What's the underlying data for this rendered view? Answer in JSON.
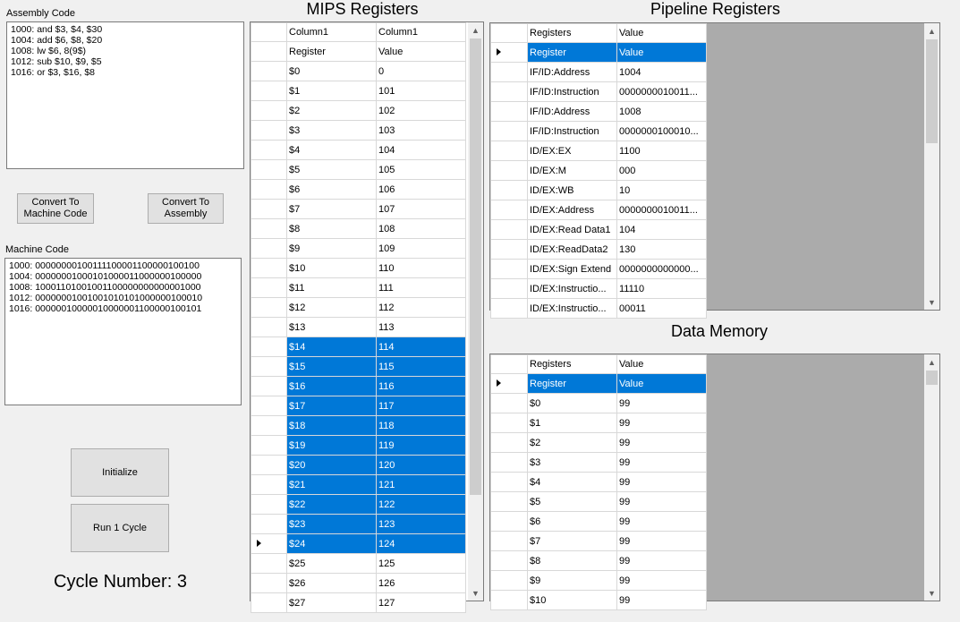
{
  "assembly": {
    "label": "Assembly Code",
    "text": "1000: and $3, $4, $30\n1004: add $6, $8, $20\n1008: lw $6, 8(9$)\n1012: sub $10, $9, $5\n1016: or $3, $16, $8"
  },
  "buttons": {
    "convert_to_machine": "Convert To\nMachine Code",
    "convert_to_assembly": "Convert To\nAssembly",
    "initialize": "Initialize",
    "run_cycle": "Run 1 Cycle"
  },
  "machine": {
    "label": "Machine Code",
    "text": "1000: 00000000100111100001100000100100\n1004: 00000001000101000011000000100000\n1008: 10001101001001100000000000001000\n1012: 00000001001001010101000000100010\n1016: 00000010000010000001100000100101"
  },
  "cycle": {
    "text": "Cycle Number: 3"
  },
  "mips": {
    "title": "MIPS Registers",
    "headers": [
      "Column1",
      "Column1"
    ],
    "rows": [
      [
        "Register",
        "Value"
      ],
      [
        "$0",
        "0"
      ],
      [
        "$1",
        "101"
      ],
      [
        "$2",
        "102"
      ],
      [
        "$3",
        "103"
      ],
      [
        "$4",
        "104"
      ],
      [
        "$5",
        "105"
      ],
      [
        "$6",
        "106"
      ],
      [
        "$7",
        "107"
      ],
      [
        "$8",
        "108"
      ],
      [
        "$9",
        "109"
      ],
      [
        "$10",
        "110"
      ],
      [
        "$11",
        "111"
      ],
      [
        "$12",
        "112"
      ],
      [
        "$13",
        "113"
      ],
      [
        "$14",
        "114"
      ],
      [
        "$15",
        "115"
      ],
      [
        "$16",
        "116"
      ],
      [
        "$17",
        "117"
      ],
      [
        "$18",
        "118"
      ],
      [
        "$19",
        "119"
      ],
      [
        "$20",
        "120"
      ],
      [
        "$21",
        "121"
      ],
      [
        "$22",
        "122"
      ],
      [
        "$23",
        "123"
      ],
      [
        "$24",
        "124"
      ],
      [
        "$25",
        "125"
      ],
      [
        "$26",
        "126"
      ],
      [
        "$27",
        "127"
      ]
    ],
    "selected_from": 15,
    "selected_to": 25,
    "current_row": 25
  },
  "pipeline": {
    "title": "Pipeline Registers",
    "headers": [
      "Registers",
      "Value"
    ],
    "rows": [
      [
        "Register",
        "Value"
      ],
      [
        "IF/ID:Address",
        "1004"
      ],
      [
        "IF/ID:Instruction",
        "0000000010011..."
      ],
      [
        "IF/ID:Address",
        "1008"
      ],
      [
        "IF/ID:Instruction",
        "0000000100010..."
      ],
      [
        "ID/EX:EX",
        "1100"
      ],
      [
        "ID/EX:M",
        "000"
      ],
      [
        "ID/EX:WB",
        "10"
      ],
      [
        "ID/EX:Address",
        "0000000010011..."
      ],
      [
        "ID/EX:Read Data1",
        "104"
      ],
      [
        "ID/EX:ReadData2",
        "130"
      ],
      [
        "ID/EX:Sign Extend",
        "0000000000000..."
      ],
      [
        "ID/EX:Instructio...",
        "11110"
      ],
      [
        "ID/EX:Instructio...",
        "00011"
      ]
    ],
    "current_row": 0
  },
  "data_memory": {
    "title": "Data Memory",
    "headers": [
      "Registers",
      "Value"
    ],
    "rows": [
      [
        "Register",
        "Value"
      ],
      [
        "$0",
        "99"
      ],
      [
        "$1",
        "99"
      ],
      [
        "$2",
        "99"
      ],
      [
        "$3",
        "99"
      ],
      [
        "$4",
        "99"
      ],
      [
        "$5",
        "99"
      ],
      [
        "$6",
        "99"
      ],
      [
        "$7",
        "99"
      ],
      [
        "$8",
        "99"
      ],
      [
        "$9",
        "99"
      ],
      [
        "$10",
        "99"
      ]
    ],
    "current_row": 0
  },
  "colors": {
    "selection": "#0078d7",
    "grid_bg": "#ababab"
  }
}
